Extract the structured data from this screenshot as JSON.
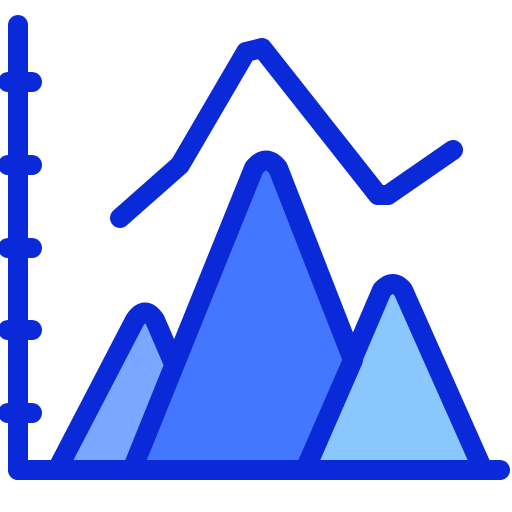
{
  "icon": {
    "name": "area-peaks-chart-icon",
    "colors": {
      "stroke": "#0a29d8",
      "peak_left_fill": "#7aa7ff",
      "peak_center_fill": "#4377ff",
      "peak_right_fill": "#8bc7ff",
      "background": "#ffffff"
    }
  }
}
